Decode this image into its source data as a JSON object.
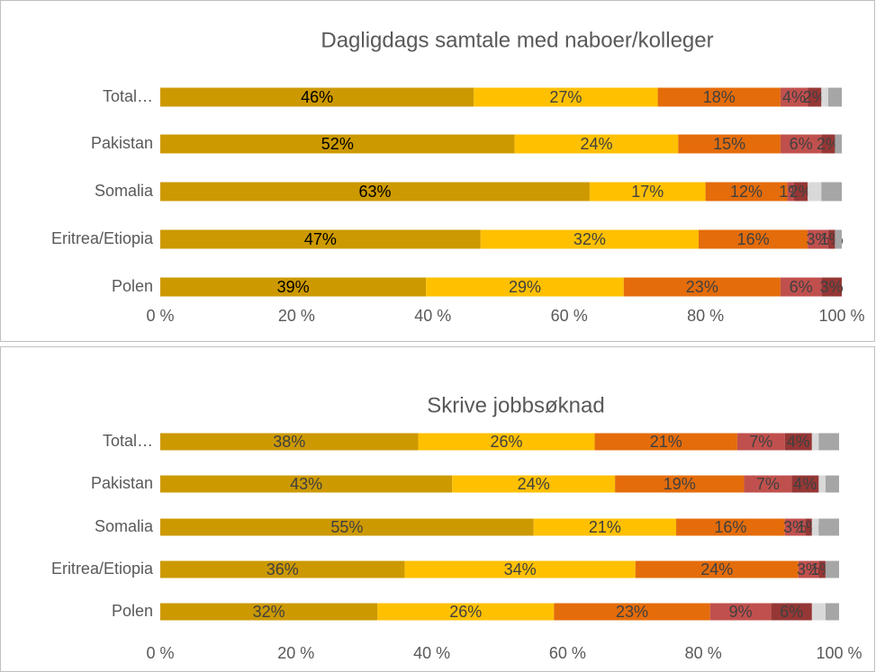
{
  "chart_data": [
    {
      "type": "stacked-bar-horizontal",
      "title": "Dagligdags samtale med naboer/kolleger",
      "categories": [
        "Total…",
        "Pakistan",
        "Somalia",
        "Eritrea/Etiopia",
        "Polen"
      ],
      "series": [
        {
          "color": "#cc9900",
          "values": [
            46,
            52,
            63,
            47,
            39
          ],
          "value_labels": [
            "46%",
            "52%",
            "63%",
            "47%",
            "39%"
          ]
        },
        {
          "color": "#ffc000",
          "values": [
            27,
            24,
            17,
            32,
            29
          ],
          "value_labels": [
            "27%",
            "24%",
            "17%",
            "32%",
            "29%"
          ]
        },
        {
          "color": "#e46c0a",
          "values": [
            18,
            15,
            12,
            16,
            23
          ],
          "value_labels": [
            "18%",
            "15%",
            "12%",
            "16%",
            "23%"
          ]
        },
        {
          "color": "#c0504d",
          "values": [
            4,
            6,
            1,
            3,
            6
          ],
          "value_labels": [
            "4%",
            "6%",
            "1%",
            "3%",
            "6%"
          ]
        },
        {
          "color": "#953735",
          "values": [
            2,
            2,
            2,
            1,
            3
          ],
          "value_labels": [
            "2%",
            "2%",
            "2%",
            "1%",
            "3%"
          ]
        },
        {
          "color": "#d9d9d9",
          "values": [
            1,
            0,
            2,
            0,
            0
          ]
        },
        {
          "color": "#a6a6a6",
          "values": [
            2,
            1,
            3,
            1,
            0
          ]
        }
      ],
      "xlim": [
        0,
        100
      ],
      "xticks": [
        {
          "value": 0,
          "label": "0 %"
        },
        {
          "value": 20,
          "label": "20 %"
        },
        {
          "value": 40,
          "label": "40 %"
        },
        {
          "value": 60,
          "label": "60 %"
        },
        {
          "value": 80,
          "label": "80 %"
        },
        {
          "value": 100,
          "label": "100 %"
        }
      ]
    },
    {
      "type": "stacked-bar-horizontal",
      "title": "Skrive jobbsøknad",
      "categories": [
        "Total…",
        "Pakistan",
        "Somalia",
        "Eritrea/Etiopia",
        "Polen"
      ],
      "series": [
        {
          "color": "#cc9900",
          "values": [
            38,
            43,
            55,
            36,
            32
          ],
          "value_labels": [
            "38%",
            "43%",
            "55%",
            "36%",
            "32%"
          ]
        },
        {
          "color": "#ffc000",
          "values": [
            26,
            24,
            21,
            34,
            26
          ],
          "value_labels": [
            "26%",
            "24%",
            "21%",
            "34%",
            "26%"
          ]
        },
        {
          "color": "#e46c0a",
          "values": [
            21,
            19,
            16,
            24,
            23
          ],
          "value_labels": [
            "21%",
            "19%",
            "16%",
            "24%",
            "23%"
          ]
        },
        {
          "color": "#c0504d",
          "values": [
            7,
            7,
            3,
            3,
            9
          ],
          "value_labels": [
            "7%",
            "7%",
            "3%",
            "3%",
            "9%"
          ]
        },
        {
          "color": "#953735",
          "values": [
            4,
            4,
            1,
            1,
            6
          ],
          "value_labels": [
            "4%",
            "4%",
            "1%",
            "1%",
            "6%"
          ]
        },
        {
          "color": "#d9d9d9",
          "values": [
            1,
            1,
            1,
            0,
            2
          ]
        },
        {
          "color": "#a6a6a6",
          "values": [
            3,
            2,
            3,
            2,
            2
          ]
        }
      ],
      "xlim": [
        0,
        100
      ],
      "xticks": [
        {
          "value": 0,
          "label": "0 %"
        },
        {
          "value": 20,
          "label": "20 %"
        },
        {
          "value": 40,
          "label": "40 %"
        },
        {
          "value": 60,
          "label": "60 %"
        },
        {
          "value": 80,
          "label": "80 %"
        },
        {
          "value": 100,
          "label": "100 %"
        }
      ]
    }
  ]
}
